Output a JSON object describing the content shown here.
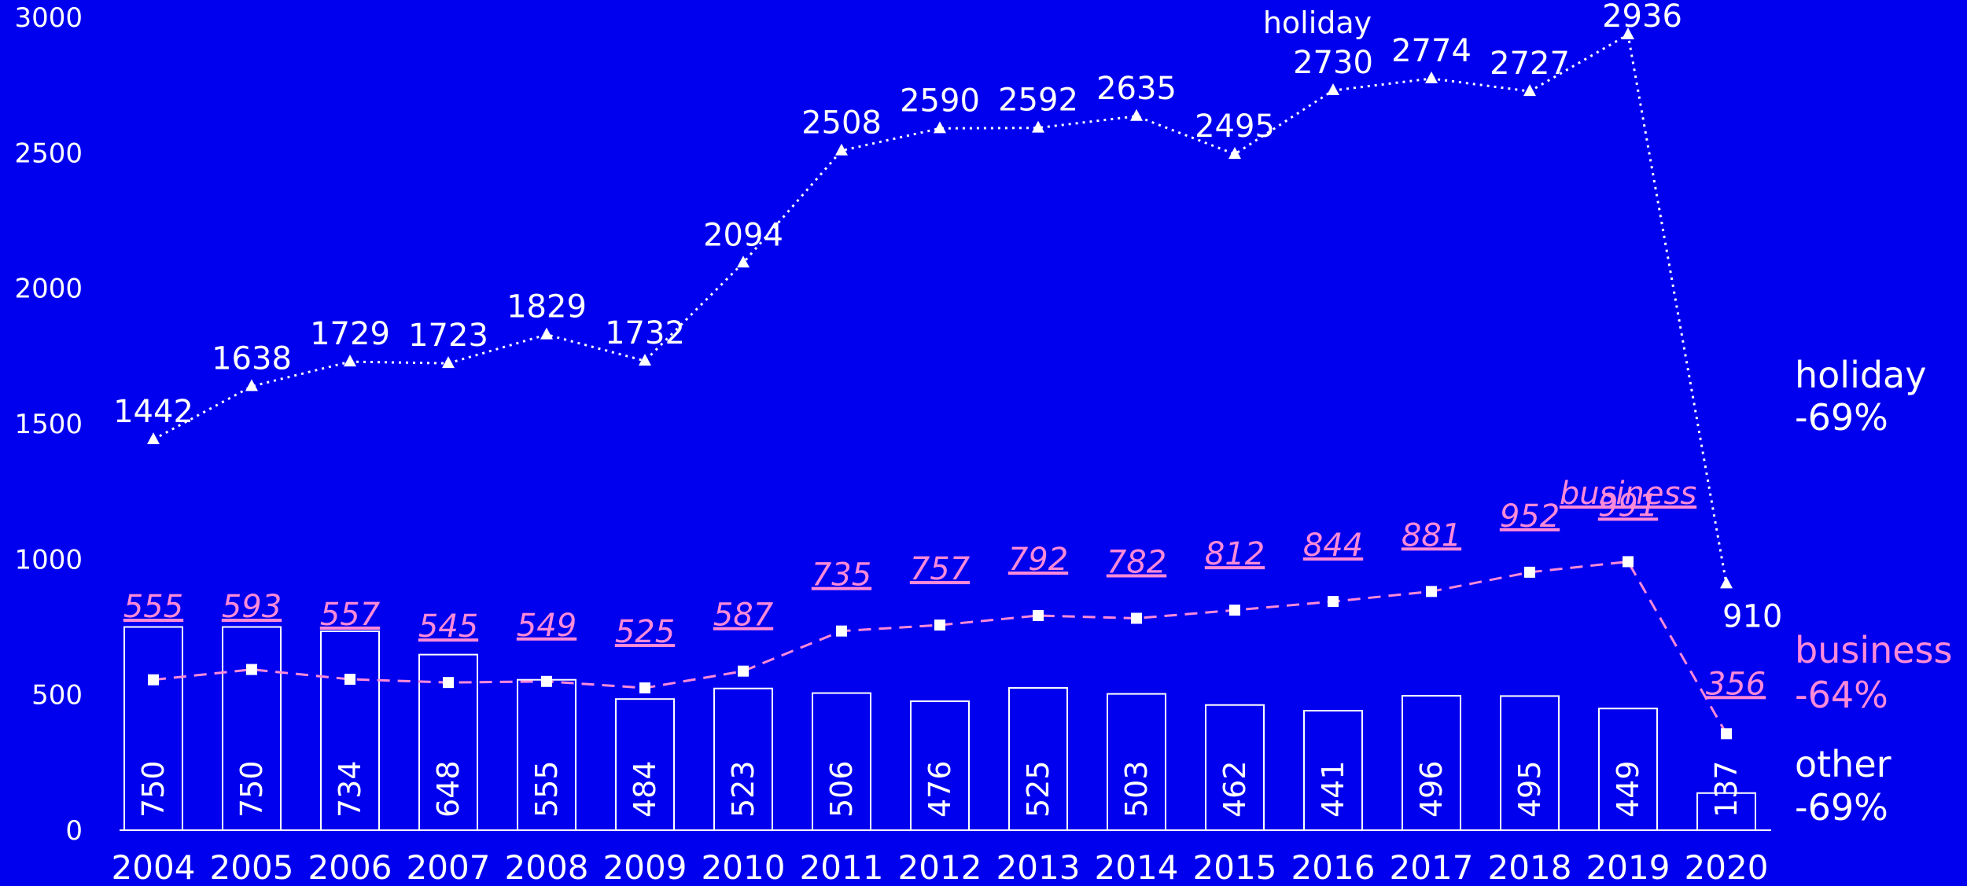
{
  "chart_data": {
    "type": "bar",
    "categories": [
      "2004",
      "2005",
      "2006",
      "2007",
      "2008",
      "2009",
      "2010",
      "2011",
      "2012",
      "2013",
      "2014",
      "2015",
      "2016",
      "2017",
      "2018",
      "2019",
      "2020"
    ],
    "ylim": [
      0,
      3000
    ],
    "y_ticks": [
      0,
      500,
      1000,
      1500,
      2000,
      2500,
      3000
    ],
    "grid": false,
    "series": [
      {
        "name": "holiday",
        "kind": "line",
        "line_style": "dotted",
        "marker": "triangle",
        "values": [
          1442,
          1638,
          1729,
          1723,
          1829,
          1732,
          2094,
          2508,
          2590,
          2592,
          2635,
          2495,
          2730,
          2774,
          2727,
          2936,
          910
        ]
      },
      {
        "name": "business",
        "kind": "line",
        "line_style": "dashed",
        "marker": "square",
        "values": [
          555,
          593,
          557,
          545,
          549,
          525,
          587,
          735,
          757,
          792,
          782,
          812,
          844,
          881,
          952,
          991,
          356
        ]
      },
      {
        "name": "other",
        "kind": "bar",
        "values": [
          750,
          750,
          734,
          648,
          555,
          484,
          523,
          506,
          476,
          525,
          503,
          462,
          441,
          496,
          495,
          449,
          137
        ]
      }
    ],
    "annotations": [
      {
        "series": "holiday",
        "text": "holiday",
        "at": "2017"
      },
      {
        "series": "business",
        "text": "business",
        "at": "2019"
      }
    ],
    "end_labels": [
      {
        "series": "holiday",
        "name": "holiday",
        "change": "-69%"
      },
      {
        "series": "business",
        "name": "business",
        "change": "-64%"
      },
      {
        "series": "other",
        "name": "other",
        "change": "-69%"
      }
    ],
    "colors": {
      "background": "#0000ee",
      "holiday": "#ffffff",
      "business": "#ff8ad8",
      "other": "#ffffff"
    }
  }
}
